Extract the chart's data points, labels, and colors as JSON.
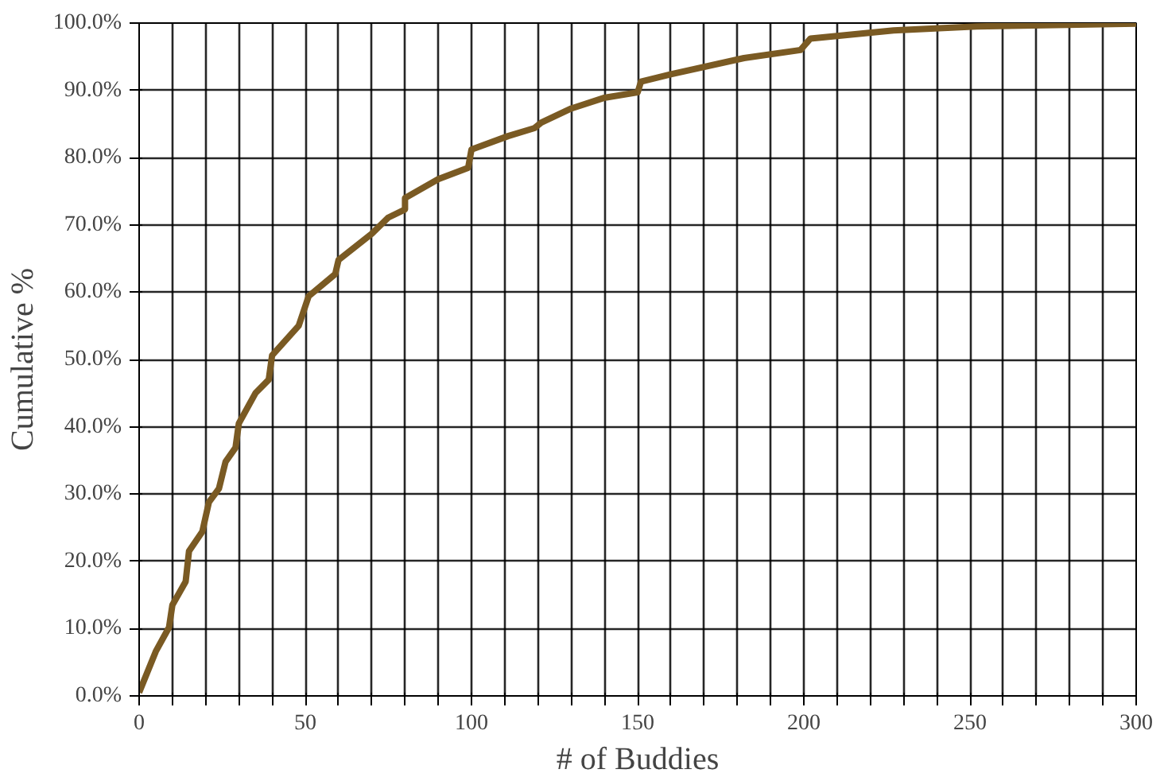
{
  "chart_data": {
    "type": "line",
    "xlabel": "# of Buddies",
    "ylabel": "Cumulative %",
    "xlim": [
      0,
      300
    ],
    "ylim": [
      0,
      100
    ],
    "xticks": [
      0,
      {
        "value": 10,
        "label": null
      },
      {
        "value": 20,
        "label": null
      },
      {
        "value": 30,
        "label": null
      },
      {
        "value": 40,
        "label": null
      },
      50,
      {
        "value": 60,
        "label": null
      },
      {
        "value": 70,
        "label": null
      },
      {
        "value": 80,
        "label": null
      },
      {
        "value": 90,
        "label": null
      },
      100,
      {
        "value": 110,
        "label": null
      },
      {
        "value": 120,
        "label": null
      },
      {
        "value": 130,
        "label": null
      },
      {
        "value": 140,
        "label": null
      },
      150,
      {
        "value": 160,
        "label": null
      },
      {
        "value": 170,
        "label": null
      },
      {
        "value": 180,
        "label": null
      },
      {
        "value": 190,
        "label": null
      },
      200,
      {
        "value": 210,
        "label": null
      },
      {
        "value": 220,
        "label": null
      },
      {
        "value": 230,
        "label": null
      },
      {
        "value": 240,
        "label": null
      },
      250,
      {
        "value": 260,
        "label": null
      },
      {
        "value": 270,
        "label": null
      },
      {
        "value": 280,
        "label": null
      },
      {
        "value": 290,
        "label": null
      },
      300
    ],
    "yticks": [
      {
        "value": 0,
        "label": "0.0%"
      },
      {
        "value": 10,
        "label": "10.0%"
      },
      {
        "value": 20,
        "label": "20.0%"
      },
      {
        "value": 30,
        "label": "30.0%"
      },
      {
        "value": 40,
        "label": "40.0%"
      },
      {
        "value": 50,
        "label": "50.0%"
      },
      {
        "value": 60,
        "label": "60.0%"
      },
      {
        "value": 70,
        "label": "70.0%"
      },
      {
        "value": 80,
        "label": "80.0%"
      },
      {
        "value": 90,
        "label": "90.0%"
      },
      {
        "value": 100,
        "label": "100.0%"
      }
    ],
    "grid": true,
    "marker": "none",
    "line_style": "solid",
    "series": [
      {
        "color": "#7a5a23",
        "x": [
          0,
          5,
          9,
          10,
          14,
          15,
          19,
          21,
          24,
          26,
          29,
          30,
          35,
          39,
          40,
          48,
          51,
          59,
          60,
          70,
          75,
          80,
          80,
          90,
          99,
          100,
          111,
          119,
          121,
          130,
          140,
          150,
          151,
          160,
          182,
          199,
          202,
          227,
          252,
          300
        ],
        "values": [
          0.5,
          6.6,
          10.2,
          13.5,
          17,
          21.5,
          24.4,
          28.8,
          30.8,
          34.8,
          36.9,
          40.5,
          45,
          47,
          50.6,
          55,
          59.4,
          62.7,
          64.8,
          68.7,
          71.1,
          72.3,
          74,
          76.8,
          78.5,
          81.2,
          83.2,
          84.4,
          85.2,
          87.3,
          88.9,
          89.7,
          91.3,
          92.4,
          94.8,
          96,
          97.7,
          98.9,
          99.5,
          99.9
        ]
      }
    ]
  }
}
